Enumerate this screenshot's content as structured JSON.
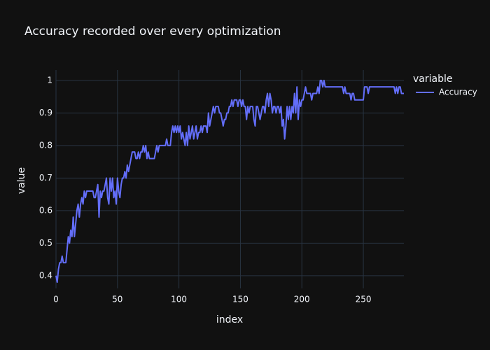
{
  "chart_data": {
    "type": "line",
    "title": "Accuracy recorded over every optimization",
    "x_label": "index",
    "y_label": "value",
    "legend_title": "variable",
    "xlim": [
      0,
      283
    ],
    "ylim": [
      0.361,
      1.032
    ],
    "xticks": [
      0,
      50,
      100,
      150,
      200,
      250
    ],
    "yticks": [
      0.4,
      0.5,
      0.6,
      0.7,
      0.8,
      0.9,
      1
    ],
    "grid": true,
    "legend_position": "right",
    "x": [
      0,
      1,
      2,
      3,
      4,
      5,
      6,
      7,
      8,
      9,
      10,
      11,
      12,
      13,
      14,
      15,
      16,
      17,
      18,
      19,
      20,
      21,
      22,
      23,
      24,
      25,
      26,
      27,
      28,
      29,
      30,
      31,
      32,
      33,
      34,
      35,
      36,
      37,
      38,
      39,
      40,
      41,
      42,
      43,
      44,
      45,
      46,
      47,
      48,
      49,
      50,
      51,
      52,
      53,
      54,
      55,
      56,
      57,
      58,
      59,
      60,
      61,
      62,
      63,
      64,
      65,
      66,
      67,
      68,
      69,
      70,
      71,
      72,
      73,
      74,
      75,
      76,
      77,
      78,
      79,
      80,
      81,
      82,
      83,
      84,
      85,
      86,
      87,
      88,
      89,
      90,
      91,
      92,
      93,
      94,
      95,
      96,
      97,
      98,
      99,
      100,
      101,
      102,
      103,
      104,
      105,
      106,
      107,
      108,
      109,
      110,
      111,
      112,
      113,
      114,
      115,
      116,
      117,
      118,
      119,
      120,
      121,
      122,
      123,
      124,
      125,
      126,
      127,
      128,
      129,
      130,
      131,
      132,
      133,
      134,
      135,
      136,
      137,
      138,
      139,
      140,
      141,
      142,
      143,
      144,
      145,
      146,
      147,
      148,
      149,
      150,
      151,
      152,
      153,
      154,
      155,
      156,
      157,
      158,
      159,
      160,
      161,
      162,
      163,
      164,
      165,
      166,
      167,
      168,
      169,
      170,
      171,
      172,
      173,
      174,
      175,
      176,
      177,
      178,
      179,
      180,
      181,
      182,
      183,
      184,
      185,
      186,
      187,
      188,
      189,
      190,
      191,
      192,
      193,
      194,
      195,
      196,
      197,
      198,
      199,
      200,
      201,
      202,
      203,
      204,
      205,
      206,
      207,
      208,
      209,
      210,
      211,
      212,
      213,
      214,
      215,
      216,
      217,
      218,
      219,
      220,
      221,
      222,
      223,
      224,
      225,
      226,
      227,
      228,
      229,
      230,
      231,
      232,
      233,
      234,
      235,
      236,
      237,
      238,
      239,
      240,
      241,
      242,
      243,
      244,
      245,
      246,
      247,
      248,
      249,
      250,
      251,
      252,
      253,
      254,
      255,
      256,
      257,
      258,
      259,
      260,
      261,
      262,
      263,
      264,
      265,
      266,
      267,
      268,
      269,
      270,
      271,
      272,
      273,
      274,
      275,
      276,
      277,
      278,
      279,
      280,
      281,
      282,
      283
    ],
    "series": [
      {
        "name": "Accuracy",
        "color": "#636efa",
        "values": [
          0.4,
          0.38,
          0.42,
          0.44,
          0.44,
          0.46,
          0.44,
          0.44,
          0.44,
          0.48,
          0.52,
          0.5,
          0.54,
          0.52,
          0.58,
          0.52,
          0.56,
          0.6,
          0.62,
          0.58,
          0.62,
          0.64,
          0.62,
          0.66,
          0.64,
          0.66,
          0.66,
          0.66,
          0.66,
          0.66,
          0.66,
          0.64,
          0.64,
          0.66,
          0.68,
          0.58,
          0.66,
          0.64,
          0.66,
          0.66,
          0.68,
          0.7,
          0.64,
          0.62,
          0.7,
          0.66,
          0.7,
          0.64,
          0.66,
          0.62,
          0.7,
          0.66,
          0.64,
          0.68,
          0.7,
          0.7,
          0.72,
          0.7,
          0.74,
          0.72,
          0.74,
          0.76,
          0.78,
          0.78,
          0.78,
          0.76,
          0.76,
          0.78,
          0.76,
          0.78,
          0.78,
          0.8,
          0.78,
          0.8,
          0.76,
          0.78,
          0.76,
          0.76,
          0.76,
          0.76,
          0.76,
          0.78,
          0.8,
          0.78,
          0.8,
          0.8,
          0.8,
          0.8,
          0.8,
          0.8,
          0.82,
          0.8,
          0.8,
          0.8,
          0.84,
          0.86,
          0.84,
          0.86,
          0.84,
          0.86,
          0.84,
          0.86,
          0.82,
          0.84,
          0.82,
          0.8,
          0.84,
          0.8,
          0.86,
          0.82,
          0.84,
          0.86,
          0.82,
          0.84,
          0.86,
          0.82,
          0.84,
          0.84,
          0.86,
          0.84,
          0.86,
          0.86,
          0.86,
          0.84,
          0.9,
          0.86,
          0.88,
          0.9,
          0.92,
          0.9,
          0.92,
          0.92,
          0.92,
          0.9,
          0.9,
          0.88,
          0.86,
          0.88,
          0.88,
          0.9,
          0.9,
          0.92,
          0.92,
          0.94,
          0.92,
          0.94,
          0.94,
          0.94,
          0.92,
          0.94,
          0.94,
          0.92,
          0.94,
          0.92,
          0.92,
          0.88,
          0.92,
          0.9,
          0.92,
          0.92,
          0.92,
          0.88,
          0.86,
          0.92,
          0.92,
          0.9,
          0.88,
          0.9,
          0.92,
          0.92,
          0.9,
          0.94,
          0.96,
          0.92,
          0.96,
          0.94,
          0.9,
          0.92,
          0.92,
          0.9,
          0.92,
          0.92,
          0.9,
          0.92,
          0.86,
          0.88,
          0.82,
          0.86,
          0.92,
          0.88,
          0.92,
          0.88,
          0.92,
          0.9,
          0.96,
          0.9,
          0.98,
          0.88,
          0.94,
          0.92,
          0.94,
          0.94,
          0.96,
          0.98,
          0.96,
          0.96,
          0.96,
          0.96,
          0.94,
          0.96,
          0.96,
          0.96,
          0.96,
          0.98,
          0.96,
          1.0,
          1.0,
          0.98,
          1.0,
          0.98,
          0.98,
          0.98,
          0.98,
          0.98,
          0.98,
          0.98,
          0.98,
          0.98,
          0.98,
          0.98,
          0.98,
          0.98,
          0.98,
          0.98,
          0.96,
          0.98,
          0.96,
          0.96,
          0.96,
          0.96,
          0.94,
          0.96,
          0.96,
          0.94,
          0.94,
          0.94,
          0.94,
          0.94,
          0.94,
          0.94,
          0.94,
          0.98,
          0.98,
          0.98,
          0.96,
          0.98,
          0.98,
          0.98,
          0.98,
          0.98,
          0.98,
          0.98,
          0.98,
          0.98,
          0.98,
          0.98,
          0.98,
          0.98,
          0.98,
          0.98,
          0.98,
          0.98,
          0.98,
          0.98,
          0.98,
          0.98,
          0.96,
          0.98,
          0.96,
          0.98,
          0.98,
          0.96,
          0.96,
          0.96
        ]
      }
    ]
  }
}
